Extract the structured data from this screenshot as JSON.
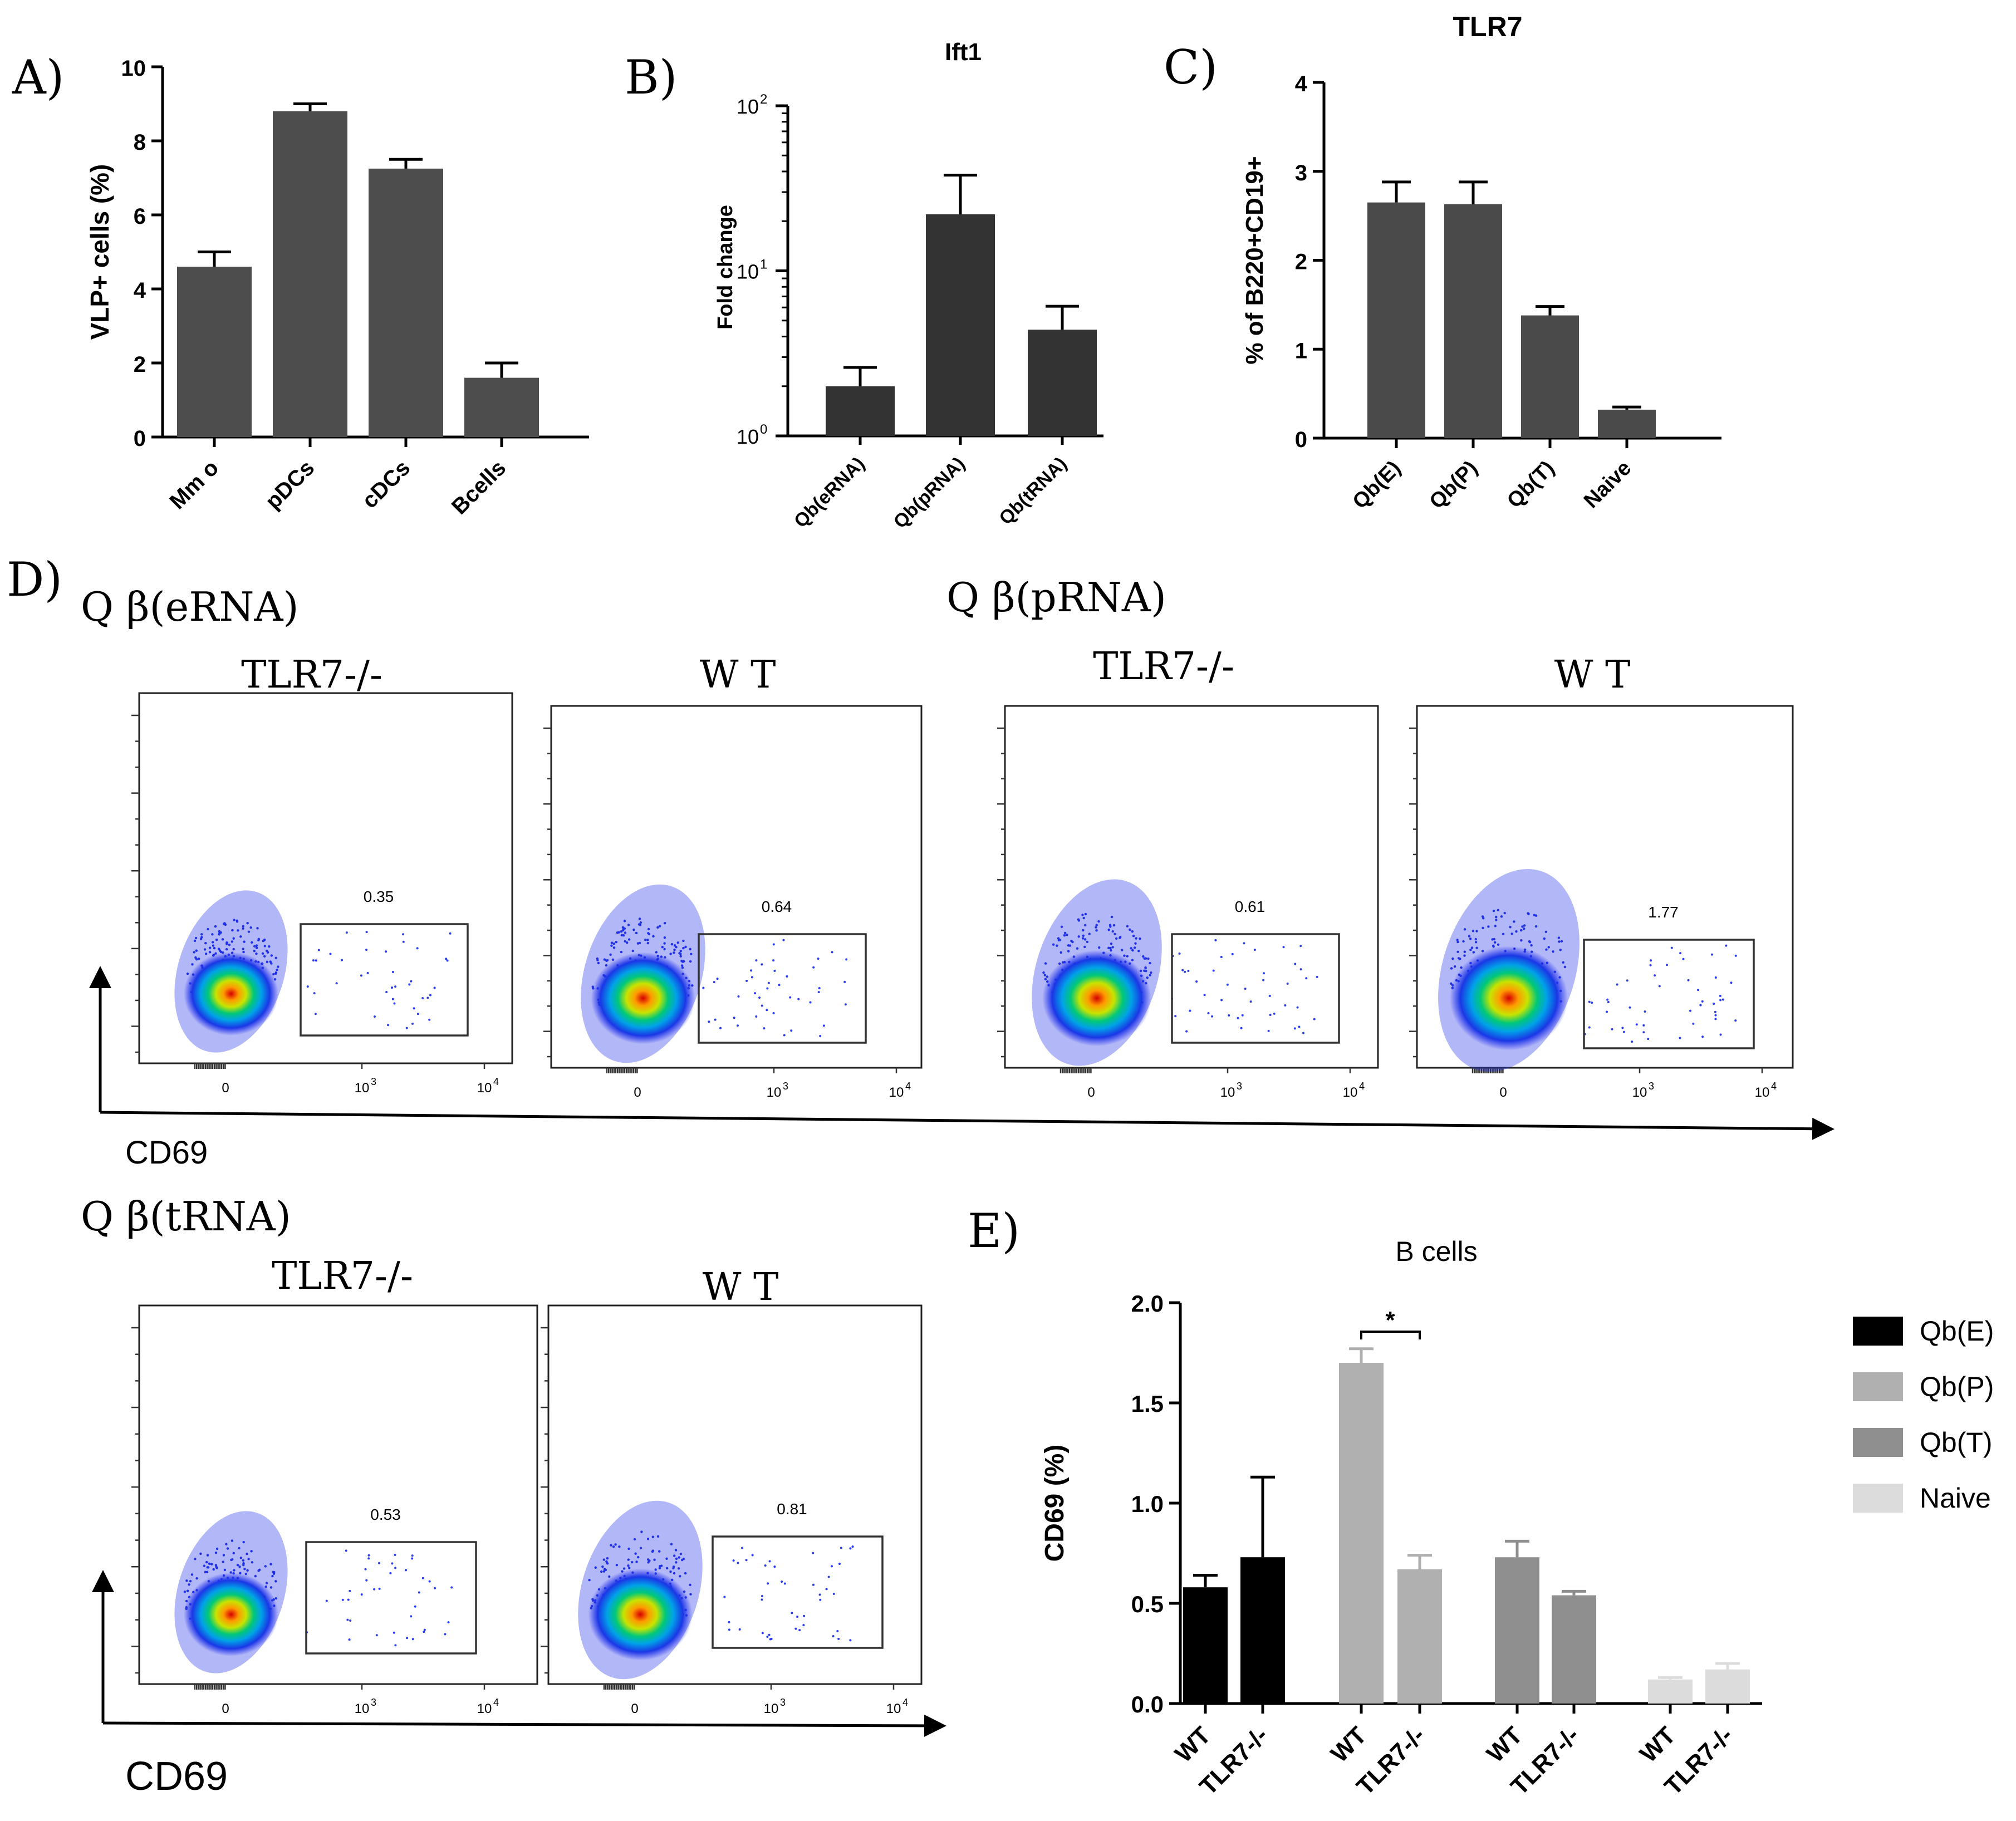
{
  "chart_data": [
    {
      "panel": "A)",
      "type": "bar",
      "title": "",
      "ylabel": "VLP+ cells (%)",
      "xlabel": "",
      "categories": [
        "Mm o",
        "pDCs",
        "cDCs",
        "Bcells"
      ],
      "values": [
        4.6,
        8.8,
        7.25,
        1.6
      ],
      "errors": [
        0.4,
        0.2,
        0.25,
        0.4
      ],
      "ylim": [
        0,
        10
      ],
      "yticks": [
        "0",
        "2",
        "4",
        "6",
        "8",
        "10"
      ],
      "color": "#4d4d4d"
    },
    {
      "panel": "B)",
      "type": "bar",
      "title": "Ift1",
      "ylabel": "Fold change",
      "yscale": "log",
      "categories": [
        "Qb(eRNA)",
        "Qb(pRNA)",
        "Qb(tRNA)"
      ],
      "values": [
        2.0,
        22,
        4.4
      ],
      "errors_upper": [
        2.6,
        38,
        6.1
      ],
      "ylim": [
        1,
        100
      ],
      "ytick_base": "10",
      "ytick_exps": [
        "0",
        "1",
        "2"
      ],
      "color": "#333333"
    },
    {
      "panel": "C)",
      "type": "bar",
      "title": "TLR7",
      "ylabel": "% of B220+CD19+",
      "categories": [
        "Qb(E)",
        "Qb(P)",
        "Qb(T)",
        "Naive"
      ],
      "values": [
        2.65,
        2.63,
        1.38,
        0.32
      ],
      "errors": [
        0.23,
        0.25,
        0.1,
        0.03
      ],
      "ylim": [
        0,
        4
      ],
      "yticks": [
        "0",
        "1",
        "2",
        "3",
        "4"
      ],
      "color": "#4a4a4a"
    },
    {
      "panel": "E)",
      "type": "bar",
      "title": "B cells",
      "ylabel": "CD69 (%)",
      "groups": [
        "Qb(E)",
        "Qb(P)",
        "Qb(T)",
        "Naive"
      ],
      "categories": [
        "WT",
        "TLR7-/-",
        "WT",
        "TLR7-/-",
        "WT",
        "TLR7-/-",
        "WT",
        "TLR7-/-"
      ],
      "values": [
        0.58,
        0.73,
        1.7,
        0.67,
        0.73,
        0.54,
        0.12,
        0.17
      ],
      "errors": [
        0.06,
        0.4,
        0.07,
        0.07,
        0.08,
        0.02,
        0.01,
        0.03
      ],
      "bar_groups": [
        0,
        0,
        1,
        1,
        2,
        2,
        3,
        3
      ],
      "ylim": [
        0,
        2.0
      ],
      "yticks": [
        "0.0",
        "0.5",
        "1.0",
        "1.5",
        "2.0"
      ],
      "significance": "*",
      "legend": [
        {
          "label": "Qb(E)",
          "color": "#000000"
        },
        {
          "label": "Qb(P)",
          "color": "#b0b0b0"
        },
        {
          "label": "Qb(T)",
          "color": "#8f8f8f"
        },
        {
          "label": "Naive",
          "color": "#dcdcdc"
        }
      ],
      "legend_position": "right"
    },
    {
      "panel": "D)",
      "type": "scatter",
      "xlabel": "CD69",
      "xticks": [
        {
          "base": "0",
          "exp": ""
        },
        {
          "base": "10",
          "exp": "3"
        },
        {
          "base": "10",
          "exp": "4"
        }
      ],
      "plots": [
        {
          "condition": "Q β(eRNA)",
          "genotype": "TLR7-/-",
          "gate_value": "0.35"
        },
        {
          "condition": "Q β(eRNA)",
          "genotype": "W T",
          "gate_value": "0.64"
        },
        {
          "condition": "Q β(pRNA)",
          "genotype": "TLR7-/-",
          "gate_value": "0.61"
        },
        {
          "condition": "Q β(pRNA)",
          "genotype": "W T",
          "gate_value": "1.77"
        },
        {
          "condition": "Q β(tRNA)",
          "genotype": "TLR7-/-",
          "gate_value": "0.53"
        },
        {
          "condition": "Q β(tRNA)",
          "genotype": "W T",
          "gate_value": "0.81"
        }
      ]
    }
  ],
  "labels": {
    "panel_a": "A)",
    "panel_b": "B)",
    "panel_c": "C)",
    "panel_d": "D)",
    "panel_e": "E)",
    "cond_e": "Q β(eRNA)",
    "cond_p": "Q β(pRNA)",
    "cond_t": "Q β(tRNA)",
    "tlr7_ko": "TLR7-/-",
    "wt": "W T",
    "cd69": "CD69"
  }
}
